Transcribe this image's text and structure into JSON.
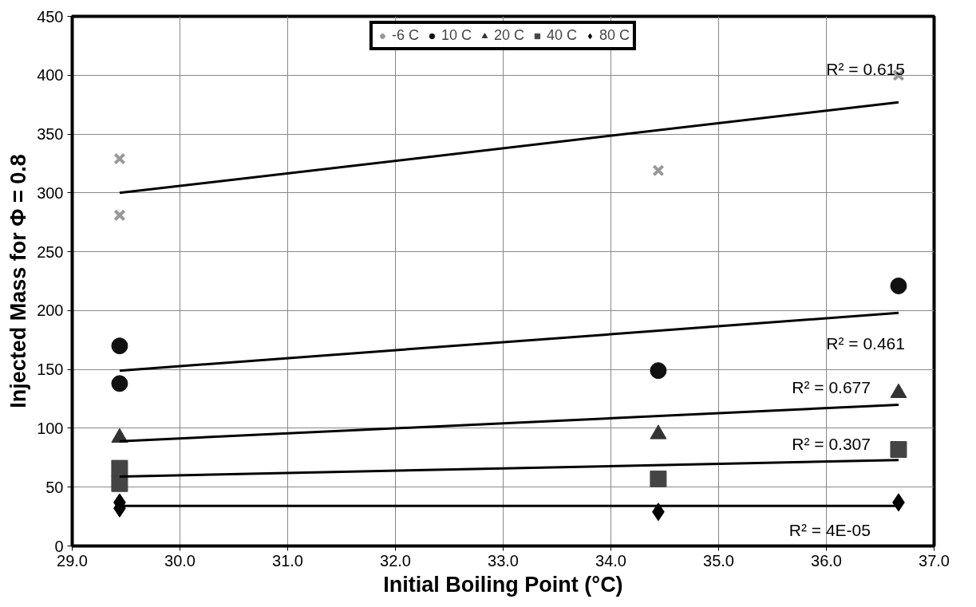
{
  "chart_data": {
    "type": "scatter",
    "xlabel": "Initial Boiling Point (°C)",
    "ylabel": "Injected Mass for Φ = 0.8",
    "xlim": [
      29,
      37
    ],
    "ylim": [
      0,
      450
    ],
    "xticks": [
      {
        "value": 29,
        "label": "29.0"
      },
      {
        "value": 30,
        "label": "30.0"
      },
      {
        "value": 31,
        "label": "31.0"
      },
      {
        "value": 32,
        "label": "32.0"
      },
      {
        "value": 33,
        "label": "33.0"
      },
      {
        "value": 34,
        "label": "34.0"
      },
      {
        "value": 35,
        "label": "35.0"
      },
      {
        "value": 36,
        "label": "36.0"
      },
      {
        "value": 37,
        "label": "37.0"
      }
    ],
    "yticks": [
      0,
      50,
      100,
      150,
      200,
      250,
      300,
      350,
      400,
      450
    ],
    "grid": true,
    "legend": "top",
    "series": [
      {
        "name": "-6 C",
        "color": "#999999",
        "marker": "cross",
        "x": [
          29.44,
          29.44,
          34.44,
          36.67
        ],
        "values": [
          329,
          281,
          319,
          400
        ]
      },
      {
        "name": "10 C",
        "color": "#111111",
        "marker": "circle",
        "x": [
          29.44,
          29.44,
          34.44,
          36.67
        ],
        "values": [
          170,
          138,
          149,
          221
        ]
      },
      {
        "name": "20 C",
        "color": "#333333",
        "marker": "triangle",
        "x": [
          29.44,
          34.44,
          36.67
        ],
        "values": [
          92,
          95,
          130
        ]
      },
      {
        "name": "40 C",
        "color": "#444444",
        "marker": "square",
        "x": [
          29.44,
          29.44,
          34.44,
          36.67
        ],
        "values": [
          66,
          53,
          57,
          82
        ]
      },
      {
        "name": "80 C",
        "color": "#000000",
        "marker": "diamond",
        "x": [
          29.44,
          29.44,
          34.44,
          36.67
        ],
        "values": [
          37,
          32,
          29,
          37
        ]
      },
      {
        "type": "line",
        "color": "#000000",
        "x": [
          29.44,
          36.67
        ],
        "values": [
          300,
          377
        ]
      },
      {
        "type": "line",
        "color": "#000000",
        "x": [
          29.44,
          36.67
        ],
        "values": [
          149,
          198
        ]
      },
      {
        "type": "line",
        "color": "#000000",
        "x": [
          29.44,
          36.67
        ],
        "values": [
          89,
          120
        ]
      },
      {
        "type": "line",
        "color": "#000000",
        "x": [
          29.44,
          36.67
        ],
        "values": [
          59,
          73
        ]
      },
      {
        "type": "line",
        "color": "#000000",
        "x": [
          29.44,
          36.67
        ],
        "values": [
          34,
          34
        ]
      }
    ],
    "annotations": [
      "R² = 0.615",
      "R² = 0.461",
      "R² = 0.677",
      "R² = 0.307",
      "R² = 4E-05"
    ]
  }
}
